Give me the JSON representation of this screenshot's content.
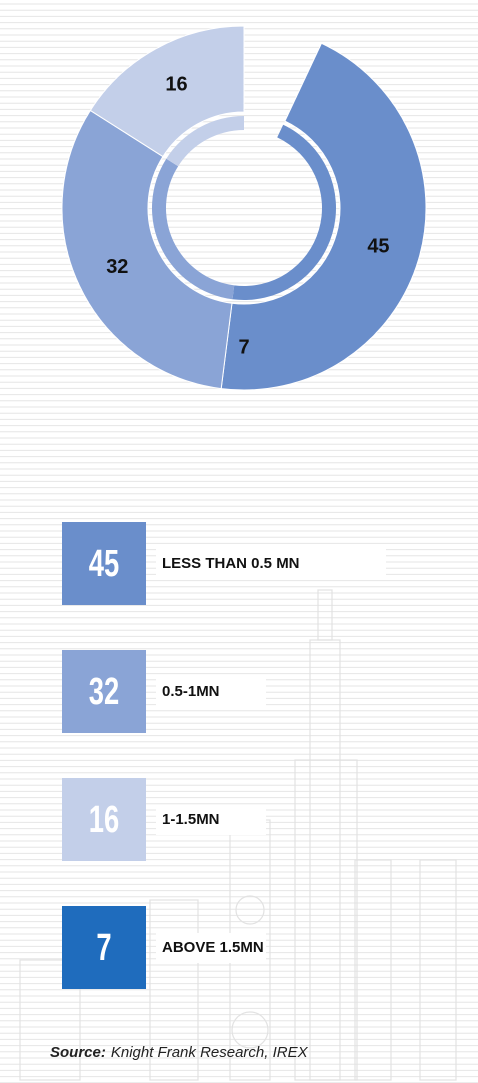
{
  "chart_data": {
    "type": "pie",
    "categories": [
      "LESS THAN 0.5 MN",
      "0.5-1MN",
      "1-1.5MN",
      "ABOVE 1.5MN"
    ],
    "values": [
      45,
      32,
      16,
      7
    ],
    "colors": [
      "#6a8ecb",
      "#8aa4d6",
      "#c3cfe9",
      "#1f6cbd"
    ],
    "source_label": "Source:",
    "source": "Knight Frank Research, IREX"
  }
}
